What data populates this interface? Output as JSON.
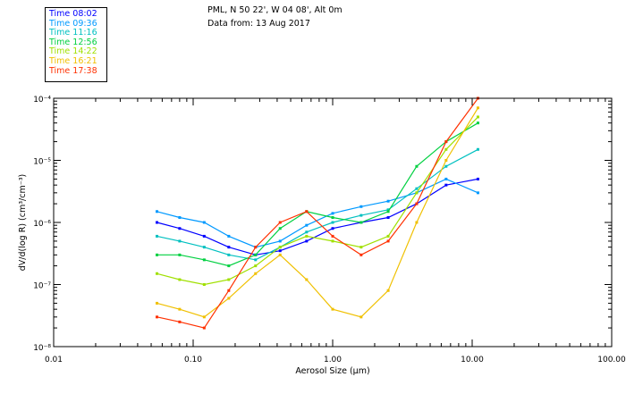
{
  "header": {
    "line1": "PML, N 50 22', W 04 08', Alt 0m",
    "line2": "Data from: 13 Aug 2017"
  },
  "legend": [
    {
      "label": "Time 08:02",
      "color": "#0000ff"
    },
    {
      "label": "Time 09:36",
      "color": "#0099ff"
    },
    {
      "label": "Time 11:16",
      "color": "#00c0c0"
    },
    {
      "label": "Time 12:56",
      "color": "#00d040"
    },
    {
      "label": "Time 14:22",
      "color": "#a0e000"
    },
    {
      "label": "Time 16:21",
      "color": "#f0c000"
    },
    {
      "label": "Time 17:38",
      "color": "#ff3000"
    }
  ],
  "chart_data": {
    "type": "line",
    "title": "PML, N 50 22', W 04 08', Alt 0m",
    "subtitle": "Data from: 13 Aug 2017",
    "xlabel": "Aerosol Size (μm)",
    "ylabel": "dV/d(log R) (cm³/cm⁻³)",
    "xscale": "log",
    "yscale": "log",
    "xlim": [
      0.01,
      100
    ],
    "ylim": [
      1e-08,
      0.0001
    ],
    "x_ticks": [
      "0.01",
      "0.10",
      "1.00",
      "10.00",
      "100.00"
    ],
    "y_ticks": [
      "10⁻⁸",
      "10⁻⁷",
      "10⁻⁶",
      "10⁻⁵",
      "10⁻⁴"
    ],
    "legend_position": "top-left",
    "x": [
      0.055,
      0.08,
      0.12,
      0.18,
      0.28,
      0.42,
      0.65,
      1.0,
      1.6,
      2.5,
      4.0,
      6.5,
      11.0
    ],
    "series": [
      {
        "name": "Time 08:02",
        "values": [
          1e-06,
          8e-07,
          6e-07,
          4e-07,
          3e-07,
          3.5e-07,
          5e-07,
          8e-07,
          1e-06,
          1.2e-06,
          2e-06,
          4e-06,
          5e-06
        ]
      },
      {
        "name": "Time 09:36",
        "values": [
          1.5e-06,
          1.2e-06,
          1e-06,
          6e-07,
          4e-07,
          5e-07,
          9e-07,
          1.4e-06,
          1.8e-06,
          2.2e-06,
          3e-06,
          5e-06,
          3e-06
        ]
      },
      {
        "name": "Time 11:16",
        "values": [
          6e-07,
          5e-07,
          4e-07,
          3e-07,
          2.5e-07,
          4e-07,
          7e-07,
          1e-06,
          1.3e-06,
          1.6e-06,
          3.5e-06,
          8e-06,
          1.5e-05
        ]
      },
      {
        "name": "Time 12:56",
        "values": [
          3e-07,
          3e-07,
          2.5e-07,
          2e-07,
          3e-07,
          8e-07,
          1.5e-06,
          1.2e-06,
          1e-06,
          1.5e-06,
          8e-06,
          2e-05,
          4e-05
        ]
      },
      {
        "name": "Time 14:22",
        "values": [
          1.5e-07,
          1.2e-07,
          1e-07,
          1.2e-07,
          2e-07,
          4e-07,
          6e-07,
          5e-07,
          4e-07,
          6e-07,
          3e-06,
          1.5e-05,
          5e-05
        ]
      },
      {
        "name": "Time 16:21",
        "values": [
          5e-08,
          4e-08,
          3e-08,
          6e-08,
          1.5e-07,
          3e-07,
          1.2e-07,
          4e-08,
          3e-08,
          8e-08,
          1e-06,
          1e-05,
          7e-05
        ]
      },
      {
        "name": "Time 17:38",
        "values": [
          3e-08,
          2.5e-08,
          2e-08,
          8e-08,
          4e-07,
          1e-06,
          1.5e-06,
          6e-07,
          3e-07,
          5e-07,
          2e-06,
          2e-05,
          0.0001
        ]
      }
    ]
  }
}
